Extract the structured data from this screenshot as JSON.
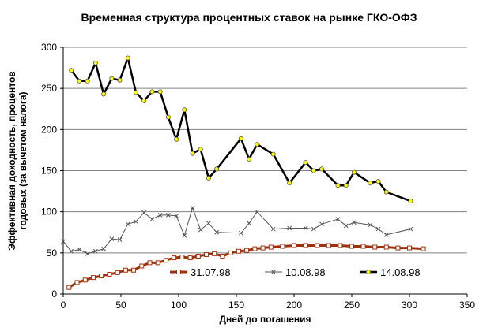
{
  "chart_data": {
    "type": "line",
    "title": "Временная структура процентных ставок на рынке ГКО-ОФЗ",
    "xlabel": "Дней до погашения",
    "ylabel_lines": [
      "Эффективная доходность, процентов",
      "годовых (за вычетом налога)"
    ],
    "xlim": [
      0,
      350
    ],
    "ylim": [
      0,
      300
    ],
    "xticks": [
      0,
      50,
      100,
      150,
      200,
      250,
      300,
      350
    ],
    "yticks": [
      0,
      50,
      100,
      150,
      200,
      250,
      300
    ],
    "grid": "horizontal",
    "legend": "bottom-right",
    "series": [
      {
        "name": "31.07.98",
        "color": "#a0300c",
        "marker": "square",
        "x": [
          5,
          12,
          19,
          26,
          33,
          40,
          47,
          54,
          61,
          68,
          75,
          82,
          89,
          96,
          103,
          110,
          117,
          124,
          131,
          138,
          145,
          152,
          159,
          166,
          173,
          180,
          190,
          200,
          210,
          220,
          230,
          240,
          250,
          260,
          270,
          280,
          290,
          300,
          312
        ],
        "y": [
          8,
          14,
          17,
          20,
          22,
          24,
          26,
          29,
          29,
          34,
          38,
          38,
          41,
          44,
          45,
          44,
          46,
          48,
          49,
          46,
          50,
          52,
          53,
          55,
          56,
          57,
          58,
          59,
          59,
          59,
          59,
          59,
          58,
          58,
          57,
          57,
          56,
          56,
          55
        ]
      },
      {
        "name": "10.08.98",
        "color": "#555555",
        "marker": "x",
        "x": [
          0,
          7,
          14,
          21,
          28,
          35,
          42,
          49,
          56,
          63,
          70,
          77,
          84,
          91,
          98,
          105,
          112,
          119,
          126,
          133,
          154,
          161,
          168,
          182,
          196,
          210,
          217,
          224,
          238,
          245,
          252,
          266,
          273,
          280,
          301
        ],
        "y": [
          64,
          52,
          54,
          49,
          52,
          55,
          67,
          66,
          85,
          88,
          99,
          91,
          96,
          96,
          95,
          71,
          105,
          78,
          86,
          75,
          74,
          86,
          100,
          79,
          80,
          80,
          79,
          85,
          91,
          83,
          87,
          84,
          79,
          72,
          79
        ]
      },
      {
        "name": "14.08.98",
        "color": "#000000",
        "marker": "circle",
        "x": [
          7,
          14,
          21,
          28,
          35,
          42,
          49,
          56,
          63,
          70,
          77,
          84,
          91,
          98,
          105,
          112,
          119,
          126,
          133,
          154,
          161,
          168,
          182,
          196,
          210,
          217,
          224,
          238,
          245,
          252,
          266,
          273,
          280,
          301
        ],
        "y": [
          272,
          259,
          259,
          281,
          243,
          262,
          260,
          287,
          245,
          235,
          246,
          246,
          215,
          188,
          224,
          171,
          176,
          141,
          152,
          189,
          164,
          182,
          170,
          135,
          160,
          150,
          152,
          132,
          132,
          148,
          135,
          137,
          124,
          113
        ]
      }
    ]
  }
}
